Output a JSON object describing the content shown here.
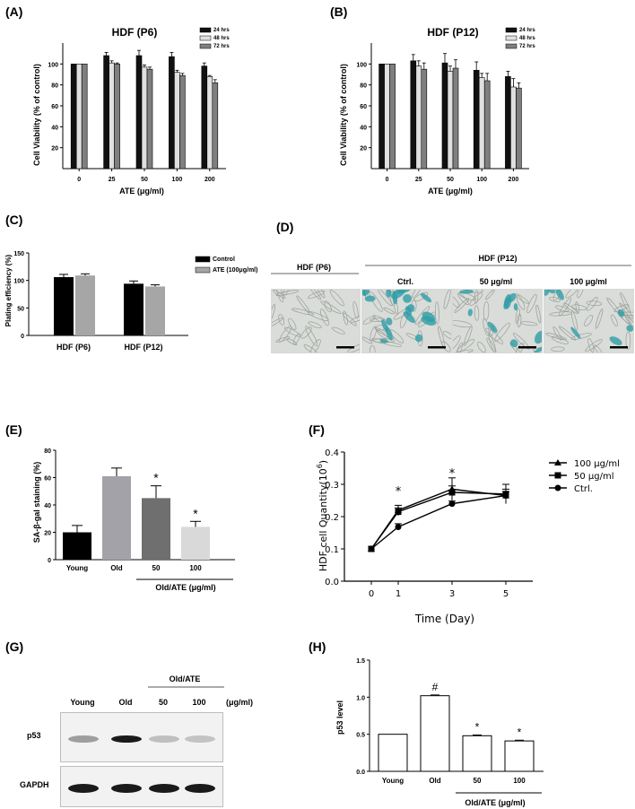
{
  "panels": {
    "A": "(A)",
    "B": "(B)",
    "C": "(C)",
    "D": "(D)",
    "E": "(E)",
    "F": "(F)",
    "G": "(G)",
    "H": "(H)"
  },
  "colors": {
    "h24": "#111111",
    "h48": "#e0e0e0",
    "h72": "#7f7f7f",
    "control": "#000000",
    "ate": "#a6a6a6",
    "young": "#000000",
    "old": "#a2a2a8",
    "ate50": "#6f6f6f",
    "ate100": "#d9d9d9",
    "stain": "#2f9ea8"
  },
  "chart_data": [
    {
      "id": "A",
      "type": "bar",
      "title": "HDF (P6)",
      "xlabel": "ATE (μg/ml)",
      "ylabel": "Cell Viability (% of control)",
      "ylim": [
        0,
        120
      ],
      "yticks": [
        20,
        40,
        60,
        80,
        100
      ],
      "categories": [
        "0",
        "25",
        "50",
        "100",
        "200"
      ],
      "series": [
        {
          "name": "24 hrs",
          "values": [
            100,
            108,
            108,
            107,
            98
          ],
          "errors": [
            0,
            3,
            5,
            4,
            3
          ]
        },
        {
          "name": "48 hrs",
          "values": [
            100,
            101,
            97,
            92,
            88
          ],
          "errors": [
            0,
            2,
            2,
            2,
            1
          ]
        },
        {
          "name": "72 hrs",
          "values": [
            100,
            100,
            95,
            89,
            82
          ],
          "errors": [
            0,
            1,
            2,
            2,
            3
          ]
        }
      ],
      "legend": "top-right"
    },
    {
      "id": "B",
      "type": "bar",
      "title": "HDF (P12)",
      "xlabel": "ATE (μg/ml)",
      "ylabel": "Cell Viability (% of control)",
      "ylim": [
        0,
        120
      ],
      "yticks": [
        20,
        40,
        60,
        80,
        100
      ],
      "categories": [
        "0",
        "25",
        "50",
        "100",
        "200"
      ],
      "series": [
        {
          "name": "24 hrs",
          "values": [
            100,
            103,
            101,
            94,
            88
          ],
          "errors": [
            0,
            6,
            9,
            8,
            5
          ]
        },
        {
          "name": "48 hrs",
          "values": [
            100,
            98,
            93,
            87,
            78
          ],
          "errors": [
            0,
            5,
            5,
            4,
            8
          ]
        },
        {
          "name": "72 hrs",
          "values": [
            100,
            95,
            96,
            84,
            77
          ],
          "errors": [
            0,
            6,
            8,
            7,
            5
          ]
        }
      ],
      "legend": "top-right"
    },
    {
      "id": "C",
      "type": "bar",
      "ylabel": "Plating efficiency (%)",
      "ylim": [
        0,
        150
      ],
      "yticks": [
        0,
        50,
        100,
        150
      ],
      "categories": [
        "HDF (P6)",
        "HDF (P12)"
      ],
      "series": [
        {
          "name": "Control",
          "values": [
            106,
            94
          ],
          "errors": [
            5,
            5
          ]
        },
        {
          "name": "ATE (100μg/ml)",
          "values": [
            109,
            89
          ],
          "errors": [
            3,
            3
          ]
        }
      ],
      "legend": "top-right"
    },
    {
      "id": "E",
      "type": "bar",
      "ylabel": "SA-β-gal staining (%)",
      "ylim": [
        0,
        80
      ],
      "yticks": [
        0,
        20,
        40,
        60,
        80
      ],
      "categories": [
        "Young",
        "Old",
        "50",
        "100"
      ],
      "values": [
        20,
        61,
        45,
        24
      ],
      "errors": [
        5,
        6,
        9,
        4
      ],
      "annotations": [
        "",
        "",
        "*",
        "*"
      ],
      "group_label": "Old/ATE (μg/ml)"
    },
    {
      "id": "F",
      "type": "line",
      "xlabel": "Time (Day)",
      "ylabel": "HDF cell Quantity(10",
      "ylabel_sup": "6",
      "ylabel_end": ")",
      "x": [
        0,
        1,
        3,
        5
      ],
      "xlim": [
        -1,
        6
      ],
      "ylim": [
        0,
        0.4
      ],
      "yticks": [
        0.0,
        0.1,
        0.2,
        0.3,
        0.4
      ],
      "series": [
        {
          "name": "100 μg/ml",
          "marker": "triangle",
          "values": [
            0.1,
            0.22,
            0.285,
            0.265
          ],
          "errors": [
            0,
            0.015,
            0.035,
            0.02
          ]
        },
        {
          "name": "50 μg/ml",
          "marker": "square",
          "values": [
            0.1,
            0.215,
            0.275,
            0.27
          ],
          "errors": [
            0,
            0.012,
            0.02,
            0.03
          ]
        },
        {
          "name": "Ctrl.",
          "marker": "circle",
          "values": [
            0.1,
            0.168,
            0.24,
            0.265
          ],
          "errors": [
            0,
            0.01,
            0.008,
            0.012
          ]
        }
      ],
      "annotations": [
        {
          "x": 1,
          "text": "*"
        },
        {
          "x": 3,
          "text": "*"
        }
      ],
      "legend": "right"
    },
    {
      "id": "H",
      "type": "bar",
      "ylabel": "p53 level",
      "ylim": [
        0,
        1.5
      ],
      "yticks": [
        0.0,
        0.5,
        1.0,
        1.5
      ],
      "categories": [
        "Young",
        "Old",
        "50",
        "100"
      ],
      "values": [
        0.5,
        1.02,
        0.48,
        0.41
      ],
      "errors": [
        0,
        0.01,
        0.01,
        0.01
      ],
      "annotations": [
        "",
        "#",
        "*",
        "*"
      ],
      "group_label": "Old/ATE (μg/ml)"
    }
  ],
  "micro": {
    "group_p6": "HDF (P6)",
    "group_p12": "HDF (P12)",
    "labels": [
      "",
      "Ctrl.",
      "50 μg/ml",
      "100 μg/ml"
    ],
    "stain_level": [
      0.0,
      0.85,
      0.45,
      0.3
    ]
  },
  "blot": {
    "group": "Old/ATE",
    "lanes": [
      "Young",
      "Old",
      "50",
      "100"
    ],
    "unit": "(μg/ml)",
    "rows": [
      "p53",
      "GAPDH"
    ],
    "p53_intensity": [
      0.35,
      0.95,
      0.2,
      0.18
    ],
    "gapdh_intensity": [
      0.95,
      0.95,
      0.95,
      0.95
    ]
  }
}
